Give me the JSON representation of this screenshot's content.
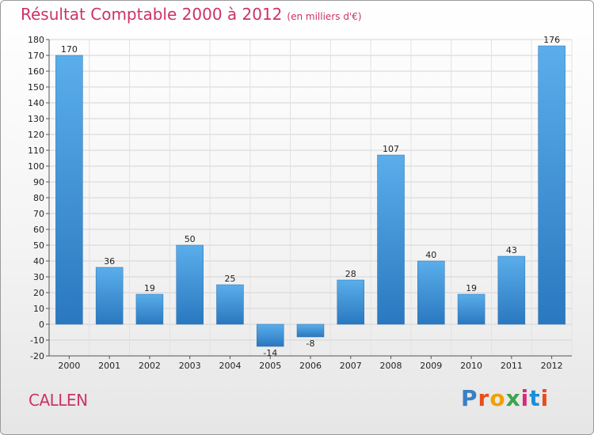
{
  "title": "Résultat Comptable 2000 à 2012",
  "subtitle": "(en milliers d'€)",
  "commune": "CALLEN",
  "logo": "Proxiti",
  "logo_colors": [
    "#3a7fc4",
    "#e84d1c",
    "#f0a000",
    "#3aa54b",
    "#d62b7a",
    "#1a8fd6",
    "#e84d1c"
  ],
  "chart_data": {
    "type": "bar",
    "categories": [
      "2000",
      "2001",
      "2002",
      "2003",
      "2004",
      "2005",
      "2006",
      "2007",
      "2008",
      "2009",
      "2010",
      "2011",
      "2012"
    ],
    "values": [
      170,
      36,
      19,
      50,
      25,
      -14,
      -8,
      28,
      107,
      40,
      19,
      43,
      176
    ],
    "ylim": [
      -20,
      180
    ],
    "yticks": [
      -20,
      -10,
      0,
      10,
      20,
      30,
      40,
      50,
      60,
      70,
      80,
      90,
      100,
      110,
      120,
      130,
      140,
      150,
      160,
      170,
      180
    ],
    "grid": true,
    "bar_color": "#3a8fd6"
  }
}
